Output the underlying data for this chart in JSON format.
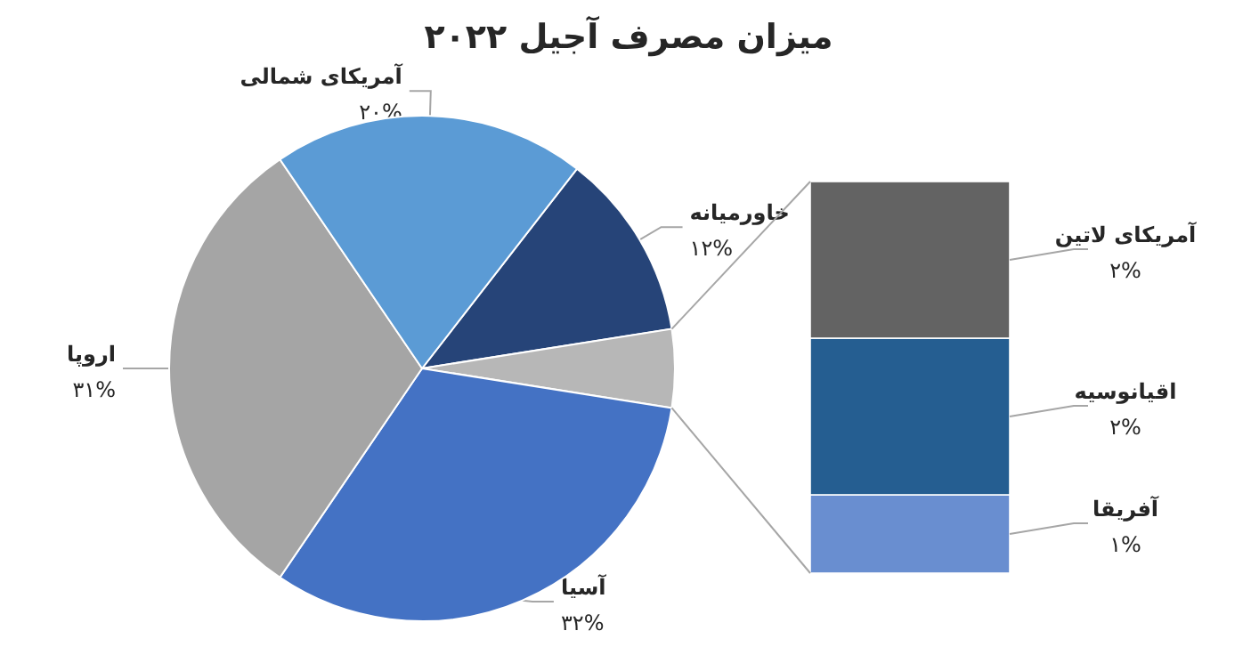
{
  "chart_data": [
    {
      "type": "pie",
      "title": "میزان مصرف آجیل ۲۰۲۲",
      "categories": [
        "خاورمیانه",
        null,
        "آسیا",
        "اروپا",
        "آمریکای شمالی"
      ],
      "values": [
        12,
        5,
        32,
        31,
        20
      ],
      "colors": [
        "#264478",
        "#b7b7b7",
        "#4472c4",
        "#a5a5a5",
        "#5b9bd5"
      ],
      "value_labels": [
        "۱۲%",
        null,
        "۳۲%",
        "۳۱%",
        "۲۰%"
      ]
    },
    {
      "type": "bar",
      "stacked": true,
      "categories": [
        null
      ],
      "series": [
        {
          "name": "آفریقا",
          "color": "#698ed0",
          "values": [
            1
          ],
          "value_labels": [
            "۱%"
          ]
        },
        {
          "name": "اقیانوسیه",
          "color": "#255e91",
          "values": [
            2
          ],
          "value_labels": [
            "۲%"
          ]
        },
        {
          "name": "آمریکای لاتین",
          "color": "#636363",
          "values": [
            2
          ],
          "value_labels": [
            "۲%"
          ]
        }
      ]
    }
  ]
}
